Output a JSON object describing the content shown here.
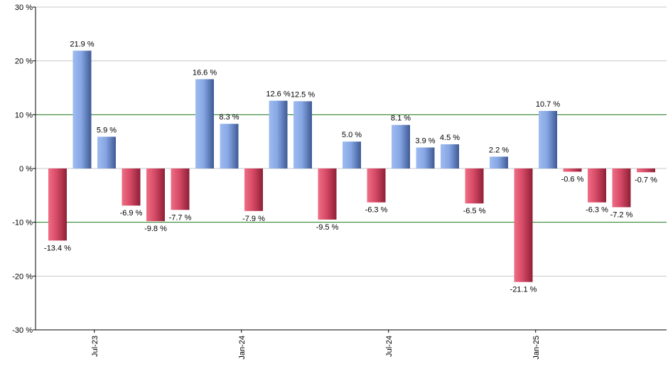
{
  "chart_data": {
    "type": "bar",
    "ylim": [
      -30,
      30
    ],
    "y_ticks": [
      30,
      20,
      10,
      0,
      -10,
      -20,
      -30
    ],
    "y_tick_labels": [
      "30 %",
      "20 %",
      "10 %",
      "0 %",
      "-10 %",
      "-20 %",
      "-30 %"
    ],
    "reference_lines": [
      10,
      -10
    ],
    "x_tick_labels": [
      {
        "label": "Jul-23",
        "after_bar": 1
      },
      {
        "label": "Jan-24",
        "after_bar": 7
      },
      {
        "label": "Jul-24",
        "after_bar": 13
      },
      {
        "label": "Jan-25",
        "after_bar": 19
      }
    ],
    "values": [
      -13.4,
      21.9,
      5.9,
      -6.9,
      -9.8,
      -7.7,
      16.6,
      8.3,
      -7.9,
      12.6,
      12.5,
      -9.5,
      5.0,
      -6.3,
      8.1,
      3.9,
      4.5,
      -6.5,
      2.2,
      -21.1,
      10.7,
      -0.6,
      -6.3,
      -7.2,
      -0.7
    ],
    "value_labels": [
      "-13.4 %",
      "21.9 %",
      "5.9 %",
      "-6.9 %",
      "-9.8 %",
      "-7.7 %",
      "16.6 %",
      "8.3 %",
      "-7.9 %",
      "12.6 %",
      "12.5 %",
      "-9.5 %",
      "5.0 %",
      "-6.3 %",
      "8.1 %",
      "3.9 %",
      "4.5 %",
      "-6.5 %",
      "2.2 %",
      "-21.1 %",
      "10.7 %",
      "-0.6 %",
      "-6.3 %",
      "-7.2 %",
      "-0.7 %"
    ],
    "grid": true,
    "colors": {
      "positive_light": "#9fbcf0",
      "positive_dark": "#3e5a95",
      "negative_light": "#ef6e86",
      "negative_dark": "#8e1f36",
      "reference_line": "#1f7a1f",
      "grid": "#c8c8c8",
      "axis": "#000000"
    }
  }
}
